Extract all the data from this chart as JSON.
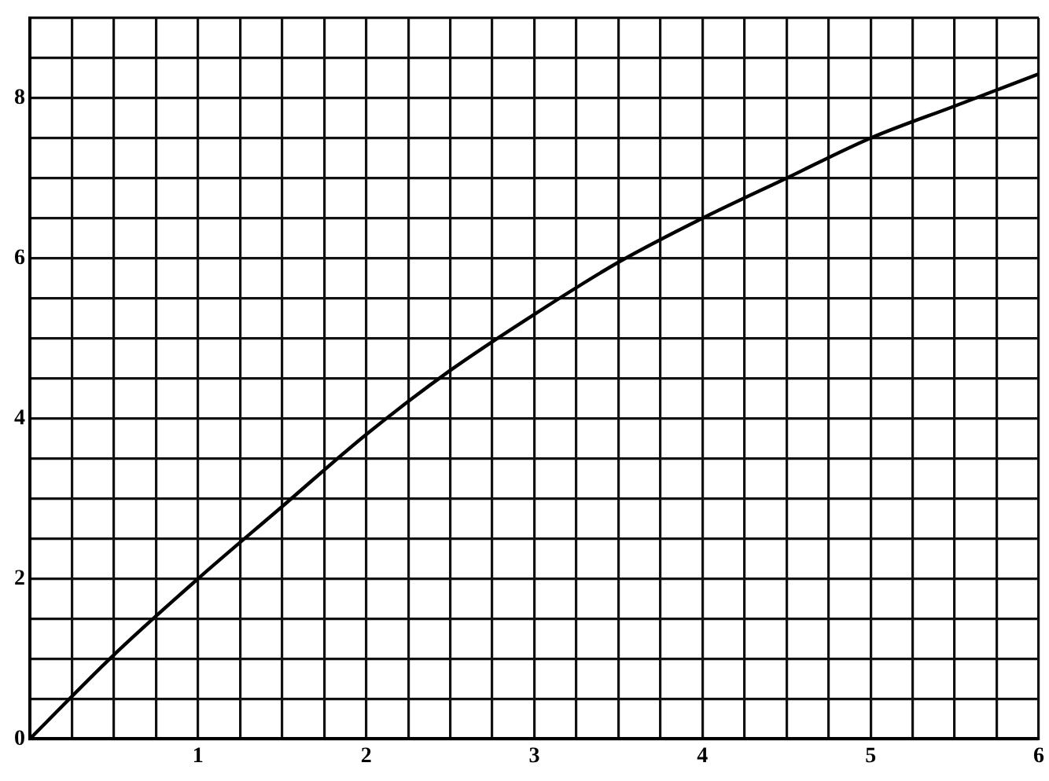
{
  "chart_data": {
    "type": "line",
    "x": [
      0,
      0.5,
      1,
      1.5,
      2,
      2.5,
      3,
      3.5,
      4,
      4.5,
      5,
      5.5,
      6
    ],
    "series": [
      {
        "color": "#000000",
        "values": [
          0,
          1.05,
          2.0,
          2.9,
          3.8,
          4.6,
          5.3,
          5.95,
          6.5,
          7.0,
          7.5,
          7.9,
          8.3
        ]
      }
    ],
    "xlim": [
      0,
      6
    ],
    "xticks": [
      {
        "value": 0,
        "label": null
      },
      {
        "value": 0.25,
        "label": null
      },
      {
        "value": 0.5,
        "label": null
      },
      {
        "value": 0.75,
        "label": null
      },
      1,
      {
        "value": 1.25,
        "label": null
      },
      {
        "value": 1.5,
        "label": null
      },
      {
        "value": 1.75,
        "label": null
      },
      2,
      {
        "value": 2.25,
        "label": null
      },
      {
        "value": 2.5,
        "label": null
      },
      {
        "value": 2.75,
        "label": null
      },
      3,
      {
        "value": 3.25,
        "label": null
      },
      {
        "value": 3.5,
        "label": null
      },
      {
        "value": 3.75,
        "label": null
      },
      4,
      {
        "value": 4.25,
        "label": null
      },
      {
        "value": 4.5,
        "label": null
      },
      {
        "value": 4.75,
        "label": null
      },
      5,
      {
        "value": 5.25,
        "label": null
      },
      {
        "value": 5.5,
        "label": null
      },
      {
        "value": 5.75,
        "label": null
      },
      6
    ],
    "ylim": [
      0,
      9
    ],
    "yticks": [
      0,
      {
        "value": 0.5,
        "label": null
      },
      {
        "value": 1,
        "label": null
      },
      {
        "value": 1.5,
        "label": null
      },
      2,
      {
        "value": 2.5,
        "label": null
      },
      {
        "value": 3,
        "label": null
      },
      {
        "value": 3.5,
        "label": null
      },
      4,
      {
        "value": 4.5,
        "label": null
      },
      {
        "value": 5,
        "label": null
      },
      {
        "value": 5.5,
        "label": null
      },
      6,
      {
        "value": 6.5,
        "label": null
      },
      {
        "value": 7,
        "label": null
      },
      {
        "value": 7.5,
        "label": null
      },
      8,
      {
        "value": 8.5,
        "label": null
      },
      {
        "value": 9,
        "label": null
      }
    ],
    "grid": true,
    "legend": false,
    "marker": "none",
    "line_style": "solid"
  }
}
